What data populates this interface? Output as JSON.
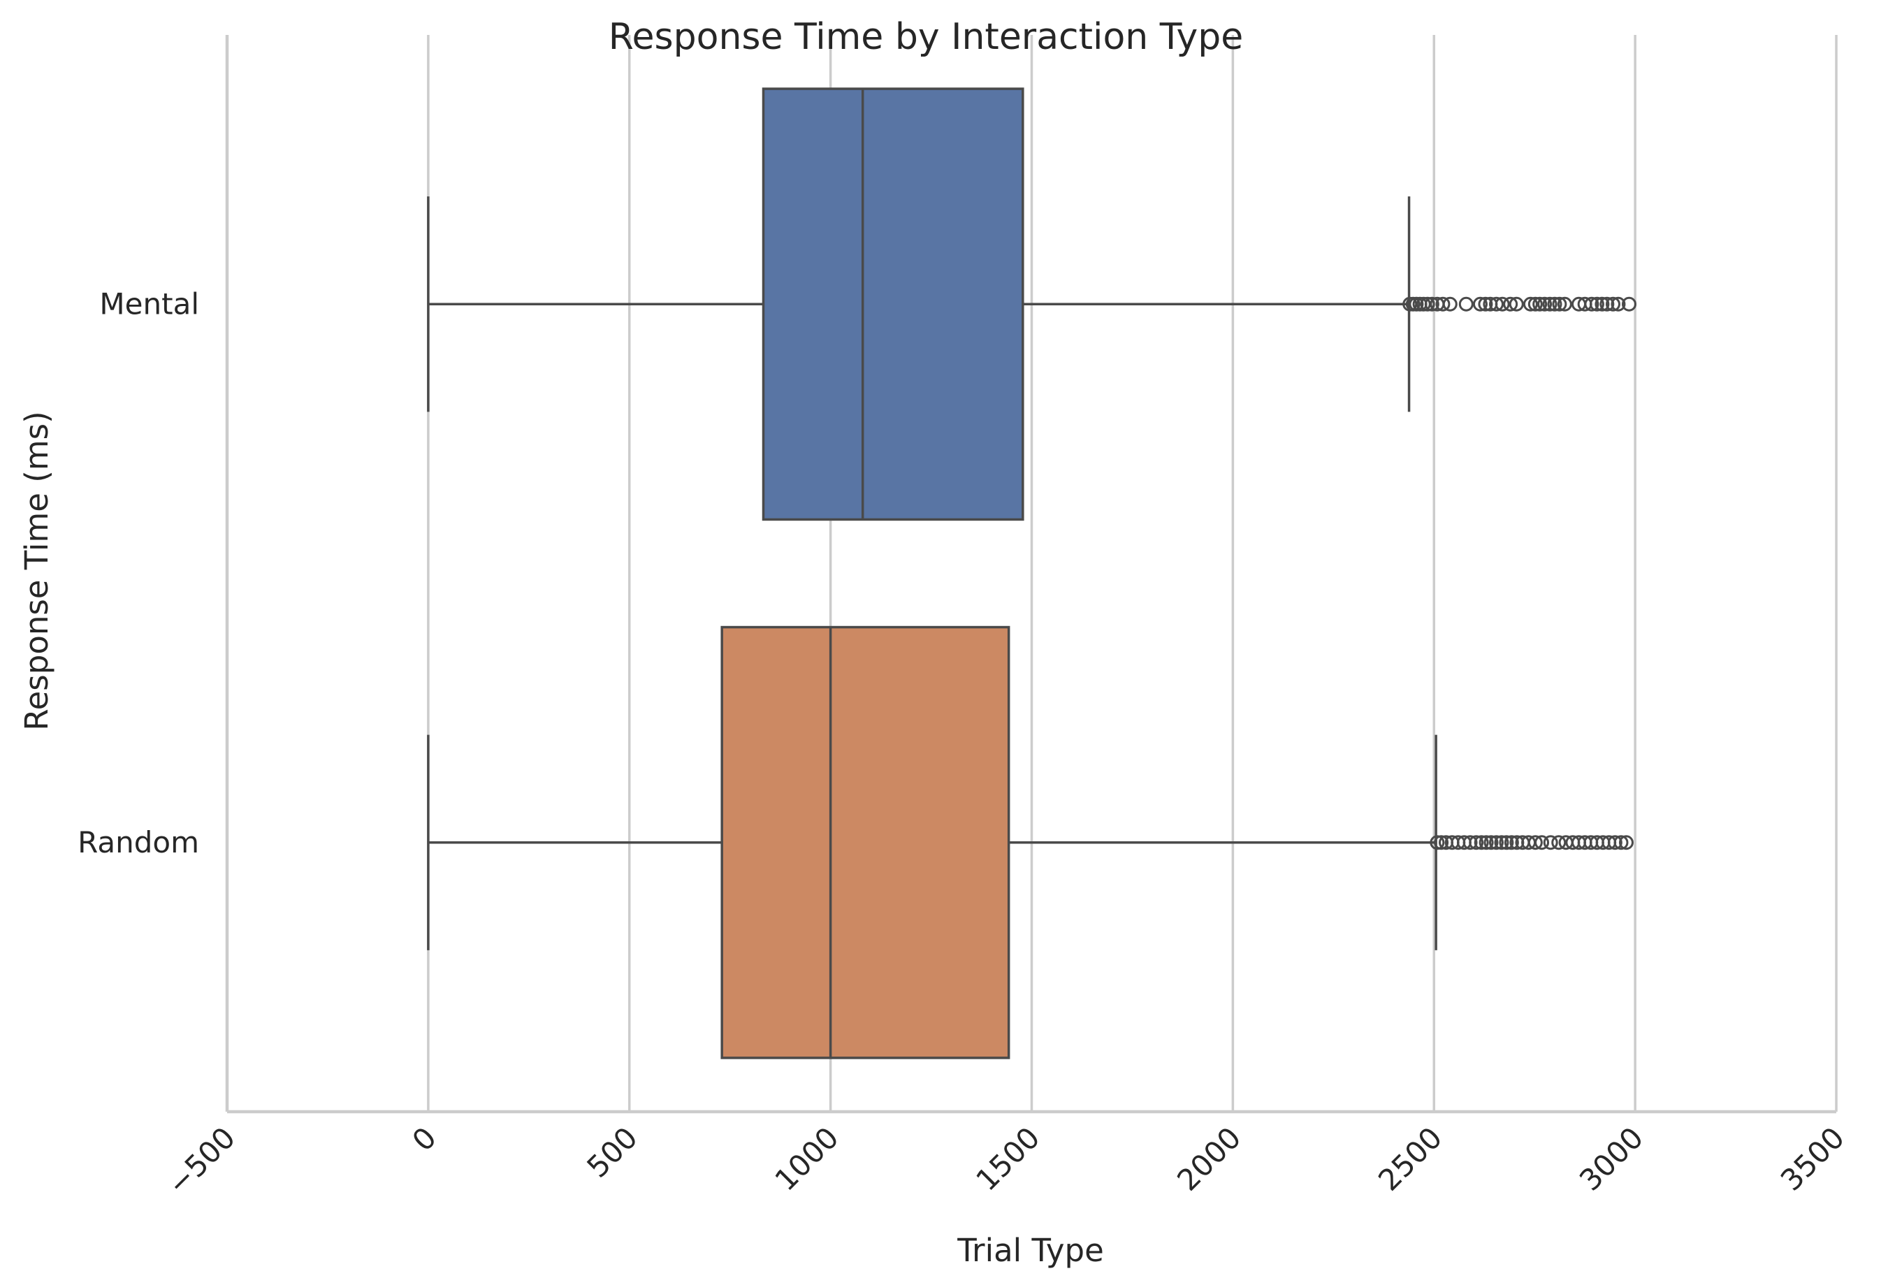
{
  "chart_data": {
    "type": "boxplot",
    "orientation": "horizontal",
    "title": "Response Time by Interaction Type",
    "xlabel": "Trial Type",
    "ylabel": "Response Time (ms)",
    "xlim": [
      -500,
      3500
    ],
    "xticks": [
      -500,
      0,
      500,
      1000,
      1500,
      2000,
      2500,
      3000,
      3500
    ],
    "xtick_labels": [
      "−500",
      "0",
      "500",
      "1000",
      "1500",
      "2000",
      "2500",
      "3000",
      "3500"
    ],
    "grid": "vertical",
    "categories": [
      "Mental",
      "Random"
    ],
    "series": [
      {
        "name": "Mental",
        "color": "#5975a4",
        "whisker_low": 0,
        "q1": 833,
        "median": 1080,
        "q3": 1478,
        "whisker_high": 2438,
        "outliers": [
          2440,
          2448,
          2456,
          2465,
          2474,
          2484,
          2495,
          2508,
          2522,
          2540,
          2580,
          2615,
          2628,
          2640,
          2655,
          2670,
          2690,
          2705,
          2740,
          2752,
          2763,
          2775,
          2788,
          2800,
          2812,
          2825,
          2860,
          2875,
          2892,
          2905,
          2918,
          2930,
          2945,
          2958,
          2985
        ]
      },
      {
        "name": "Random",
        "color": "#cc8963",
        "whisker_low": 0,
        "q1": 730,
        "median": 1000,
        "q3": 1443,
        "whisker_high": 2505,
        "outliers": [
          2508,
          2518,
          2530,
          2545,
          2560,
          2575,
          2590,
          2605,
          2618,
          2630,
          2642,
          2655,
          2668,
          2680,
          2693,
          2706,
          2720,
          2735,
          2752,
          2768,
          2790,
          2810,
          2828,
          2845,
          2860,
          2875,
          2890,
          2905,
          2920,
          2935,
          2950,
          2965,
          2978
        ]
      }
    ]
  }
}
